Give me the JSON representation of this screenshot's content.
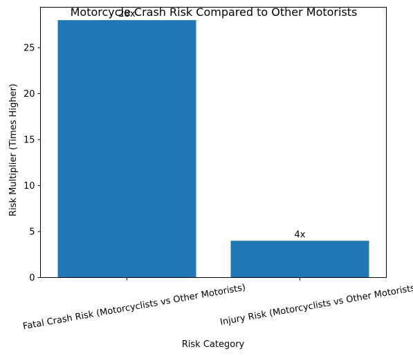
{
  "chart_data": {
    "type": "bar",
    "title": "Motorcycle Crash Risk Compared to Other Motorists",
    "xlabel": "Risk Category",
    "ylabel": "Risk Multiplier (Times Higher)",
    "categories": [
      "Fatal Crash Risk (Motorcyclists vs Other Motorists)",
      "Injury Risk (Motorcyclists vs Other Motorists)"
    ],
    "values": [
      28,
      4
    ],
    "data_labels": [
      "28x",
      "4x"
    ],
    "ylim": [
      0,
      29.4
    ],
    "yticks": [
      0,
      5,
      10,
      15,
      20,
      25
    ],
    "bar_color": "#1f77b4",
    "grid": false,
    "legend": "none"
  }
}
